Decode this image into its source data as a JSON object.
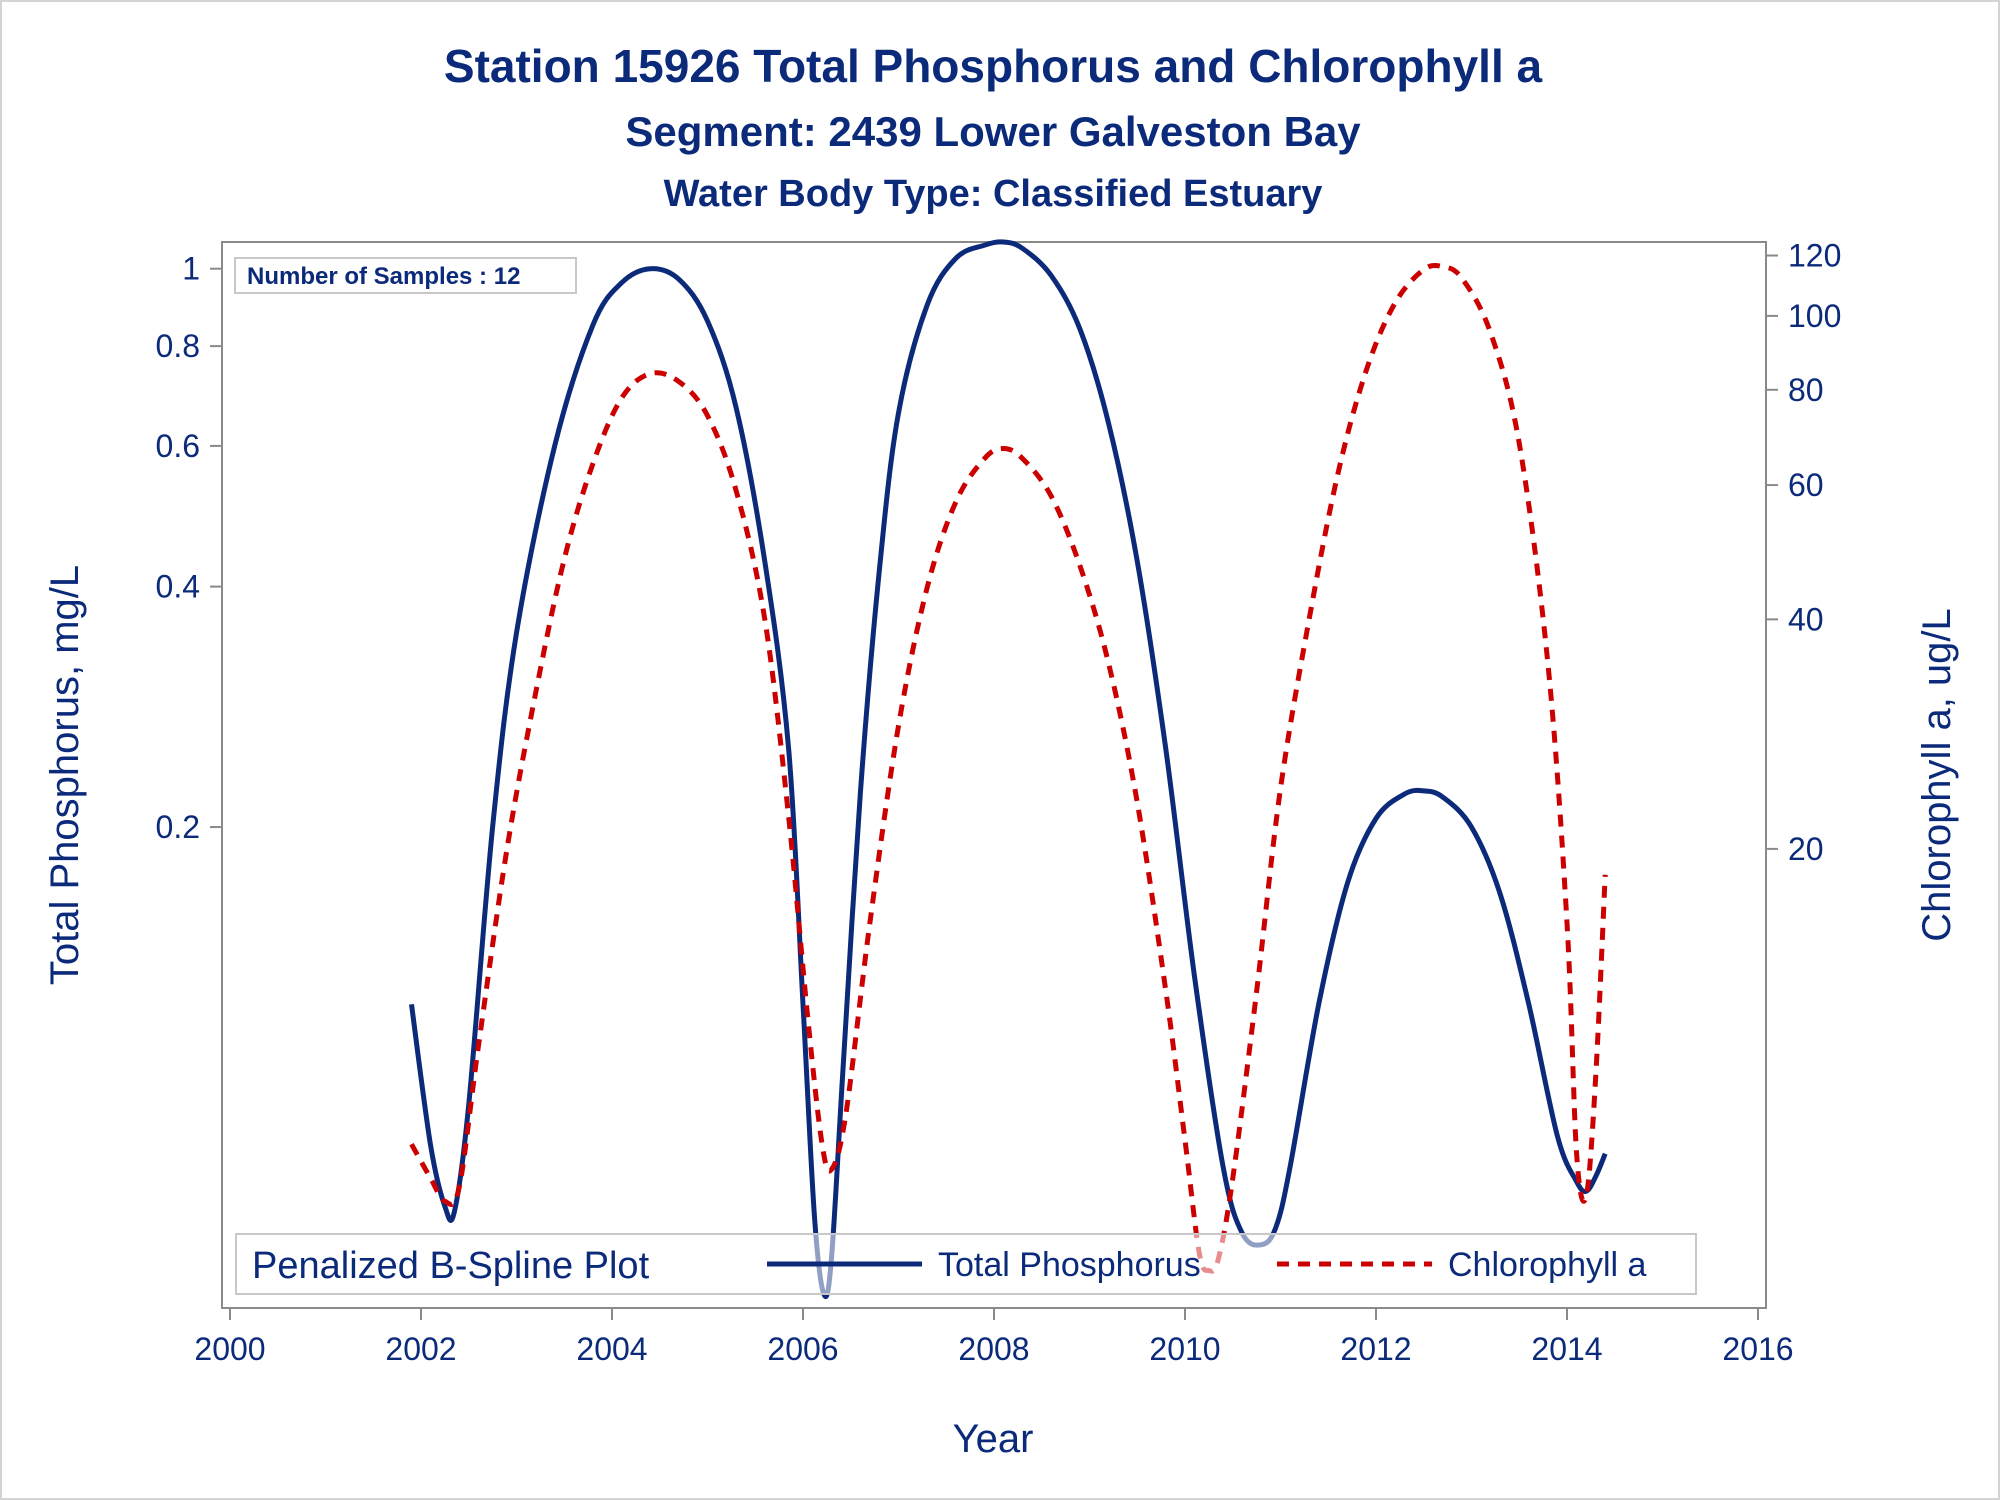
{
  "chart_data": {
    "type": "line",
    "title": "Station 15926  Total Phosphorus and Chlorophyll a",
    "subtitle": "Segment: 2439  Lower Galveston Bay",
    "subtitle2": "Water Body Type: Classified Estuary",
    "xlabel": "Year",
    "ylabel": "Total Phosphorus, mg/L",
    "y2label": "Chlorophyll a, ug/L",
    "xlim": [
      2000,
      2016
    ],
    "xticks": [
      2000,
      2002,
      2004,
      2006,
      2008,
      2010,
      2012,
      2014,
      2016
    ],
    "ylim": [
      0.05,
      1.08
    ],
    "yscale": "log",
    "yticks": [
      0.2,
      0.4,
      0.6,
      0.8,
      1
    ],
    "y2lim": [
      5,
      125
    ],
    "y2scale": "log",
    "y2ticks": [
      20,
      40,
      60,
      80,
      100,
      120
    ],
    "inset": "Number of Samples : 12",
    "legend": {
      "title": "Penalized B-Spline Plot",
      "placement": "bottom-inside",
      "entries": [
        "Total Phosphorus",
        "Chlorophyll a"
      ]
    },
    "series": [
      {
        "name": "Total Phosphorus",
        "axis": "left",
        "color": "#0b2a7a",
        "style": "solid",
        "x": [
          2001.9,
          2002.1,
          2002.25,
          2002.35,
          2002.5,
          2002.75,
          2003.0,
          2003.4,
          2003.8,
          2004.1,
          2004.4,
          2004.7,
          2005.0,
          2005.3,
          2005.6,
          2005.85,
          2006.0,
          2006.12,
          2006.22,
          2006.3,
          2006.42,
          2006.6,
          2006.8,
          2007.0,
          2007.3,
          2007.6,
          2007.9,
          2008.1,
          2008.3,
          2008.6,
          2008.9,
          2009.2,
          2009.5,
          2009.8,
          2010.1,
          2010.4,
          2010.6,
          2010.8,
          2010.95,
          2011.1,
          2011.4,
          2011.7,
          2012.0,
          2012.3,
          2012.5,
          2012.7,
          2013.0,
          2013.3,
          2013.6,
          2013.9,
          2014.1,
          2014.2,
          2014.3,
          2014.4
        ],
        "values": [
          0.12,
          0.08,
          0.067,
          0.066,
          0.09,
          0.2,
          0.35,
          0.6,
          0.85,
          0.96,
          1.0,
          0.97,
          0.86,
          0.67,
          0.43,
          0.25,
          0.12,
          0.065,
          0.052,
          0.058,
          0.1,
          0.22,
          0.42,
          0.66,
          0.9,
          1.03,
          1.07,
          1.08,
          1.06,
          0.98,
          0.84,
          0.64,
          0.43,
          0.25,
          0.13,
          0.075,
          0.062,
          0.06,
          0.063,
          0.075,
          0.12,
          0.17,
          0.205,
          0.22,
          0.222,
          0.218,
          0.2,
          0.165,
          0.12,
          0.082,
          0.072,
          0.07,
          0.073,
          0.078
        ]
      },
      {
        "name": "Chlorophyll a",
        "axis": "right",
        "color": "#cc0000",
        "style": "dashed",
        "x": [
          2001.9,
          2002.1,
          2002.25,
          2002.4,
          2002.6,
          2002.9,
          2003.2,
          2003.5,
          2003.8,
          2004.1,
          2004.4,
          2004.7,
          2005.0,
          2005.3,
          2005.6,
          2005.85,
          2006.05,
          2006.2,
          2006.3,
          2006.45,
          2006.7,
          2007.0,
          2007.3,
          2007.6,
          2007.9,
          2008.1,
          2008.3,
          2008.6,
          2008.9,
          2009.2,
          2009.5,
          2009.8,
          2010.0,
          2010.15,
          2010.25,
          2010.35,
          2010.5,
          2010.75,
          2011.0,
          2011.3,
          2011.6,
          2011.9,
          2012.2,
          2012.5,
          2012.7,
          2012.9,
          2013.2,
          2013.5,
          2013.8,
          2014.0,
          2014.1,
          2014.2,
          2014.3,
          2014.4
        ],
        "values": [
          8.2,
          7.4,
          6.9,
          7.2,
          11,
          20,
          32,
          48,
          64,
          78,
          84,
          82,
          74,
          59,
          40,
          22,
          12,
          8.2,
          7.6,
          9,
          16,
          29,
          44,
          57,
          65,
          67,
          65,
          58,
          47,
          35,
          23,
          13,
          8.3,
          5.9,
          5.6,
          5.8,
          7.4,
          13,
          24,
          40,
          62,
          85,
          104,
          115,
          116,
          112,
          95,
          68,
          35,
          16,
          8,
          7,
          10,
          18.5
        ]
      }
    ]
  }
}
